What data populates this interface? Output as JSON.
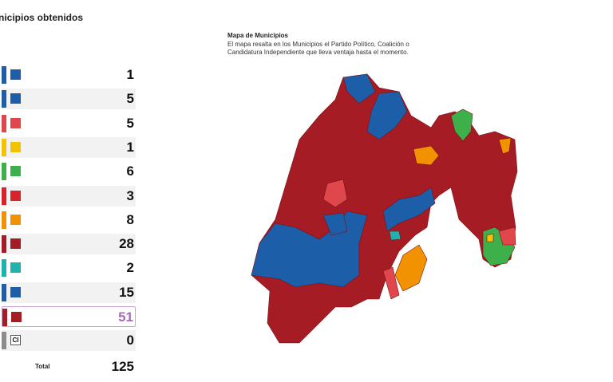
{
  "panel": {
    "title": "nicipios obtenidos",
    "rows": [
      {
        "color": "#1d5ea8",
        "count": 1
      },
      {
        "color": "#1d5ea8",
        "count": 5
      },
      {
        "color": "#e0474c",
        "count": 5
      },
      {
        "color": "#f2c300",
        "count": 1
      },
      {
        "color": "#3db04b",
        "count": 6
      },
      {
        "color": "#d8232a",
        "count": 3
      },
      {
        "color": "#f39200",
        "count": 8
      },
      {
        "color": "#a51c24",
        "count": 28
      },
      {
        "color": "#1fb3b0",
        "count": 2
      },
      {
        "color": "#1d5ea8",
        "count": 15
      },
      {
        "color": "#a51c24",
        "count": 51,
        "highlighted": true
      },
      {
        "color": "#8c8c8c",
        "count": 0,
        "logo_text": "CI"
      }
    ],
    "total_label": "Total",
    "total": 125
  },
  "map": {
    "title": "Mapa de Municipios",
    "description_lines": [
      "El mapa resalta en los Municipios el Partido Político, Coalición o",
      "Candidatura Independiente que lleva ventaja hasta el momento."
    ]
  }
}
